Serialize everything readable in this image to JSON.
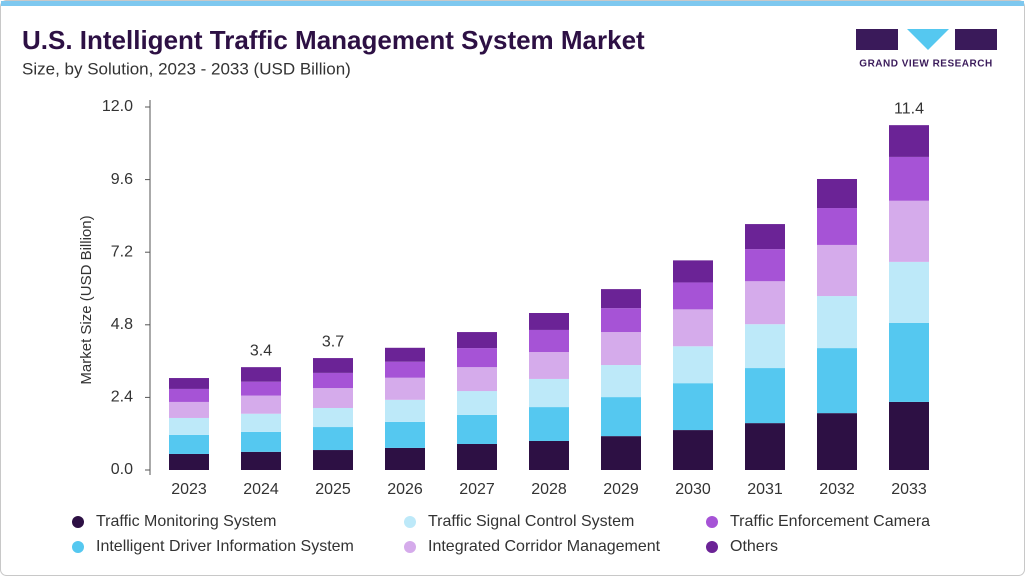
{
  "chart_data": {
    "type": "stacked_bar",
    "title": "U.S. Intelligent Traffic Management System Market",
    "subtitle": "Size, by Solution, 2023 - 2033 (USD Billion)",
    "brand": "GRAND VIEW RESEARCH",
    "y_label": "Market Size (USD Billion)",
    "categories": [
      "2023",
      "2024",
      "2025",
      "2026",
      "2027",
      "2028",
      "2029",
      "2030",
      "2031",
      "2032",
      "2033"
    ],
    "series": [
      {
        "name": "Traffic Monitoring System",
        "color": "#2d1044",
        "values": [
          0.53,
          0.6,
          0.66,
          0.73,
          0.86,
          0.96,
          1.12,
          1.32,
          1.55,
          1.88,
          2.25
        ]
      },
      {
        "name": "Intelligent Driver Information System",
        "color": "#55c8f0",
        "values": [
          0.63,
          0.66,
          0.76,
          0.86,
          0.96,
          1.12,
          1.29,
          1.55,
          1.82,
          2.15,
          2.61
        ]
      },
      {
        "name": "Traffic Signal Control System",
        "color": "#bde9f9",
        "values": [
          0.56,
          0.6,
          0.63,
          0.73,
          0.79,
          0.93,
          1.06,
          1.22,
          1.45,
          1.72,
          2.02
        ]
      },
      {
        "name": "Integrated Corridor Management",
        "color": "#d5abeb",
        "values": [
          0.53,
          0.6,
          0.66,
          0.73,
          0.79,
          0.89,
          1.09,
          1.22,
          1.42,
          1.69,
          2.02
        ]
      },
      {
        "name": "Traffic Enforcement Camera",
        "color": "#a653d6",
        "values": [
          0.43,
          0.46,
          0.5,
          0.53,
          0.63,
          0.73,
          0.79,
          0.89,
          1.06,
          1.22,
          1.45
        ]
      },
      {
        "name": "Others",
        "color": "#6b2396",
        "values": [
          0.36,
          0.48,
          0.49,
          0.46,
          0.53,
          0.56,
          0.63,
          0.73,
          0.83,
          0.96,
          1.05
        ]
      }
    ],
    "totals": [
      null,
      3.4,
      3.7,
      null,
      null,
      null,
      null,
      null,
      null,
      null,
      11.4
    ],
    "ylim": [
      0,
      12
    ],
    "yticks": [
      {
        "value": 0,
        "label": "0.0"
      },
      2.4,
      4.8,
      7.2,
      9.6,
      {
        "value": 12,
        "label": "12.0"
      }
    ]
  }
}
